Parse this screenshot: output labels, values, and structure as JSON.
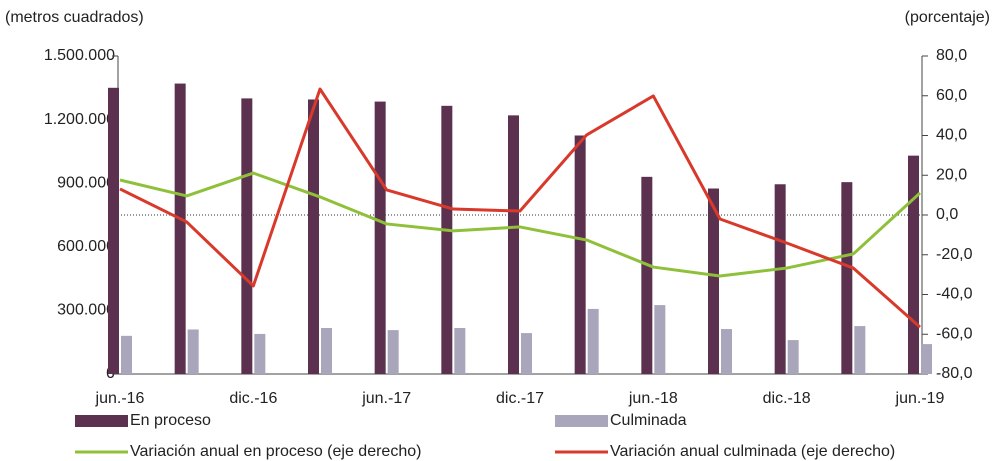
{
  "chart_data": {
    "type": "bar_line",
    "y_label": "(metros cuadrados)",
    "y2_label": "(porcentaje)",
    "categories": [
      "jun.-16",
      null,
      "dic.-16",
      null,
      "jun.-17",
      null,
      "dic.-17",
      null,
      "jun.-18",
      null,
      "dic.-18",
      null,
      "jun.-19"
    ],
    "ylim": [
      0,
      1500000
    ],
    "yticks": [
      0,
      {
        "value": 300000,
        "label": "300.000"
      },
      {
        "value": 600000,
        "label": "600.000"
      },
      {
        "value": 900000,
        "label": "900.000"
      },
      {
        "value": 1200000,
        "label": "1.200.000"
      },
      {
        "value": 1500000,
        "label": "1.500.000"
      }
    ],
    "y2lim": [
      -80,
      80
    ],
    "y2ticks": [
      {
        "value": -80,
        "label": "-80,0"
      },
      {
        "value": -60,
        "label": "-60,0"
      },
      {
        "value": -40,
        "label": "-40,0"
      },
      {
        "value": -20,
        "label": "-20,0"
      },
      {
        "value": 0,
        "label": "0,0"
      },
      {
        "value": 20,
        "label": "20,0"
      },
      {
        "value": 40,
        "label": "40,0"
      },
      {
        "value": 60,
        "label": "60,0"
      },
      {
        "value": 80,
        "label": "80,0"
      }
    ],
    "series": [
      {
        "name": "En proceso",
        "type": "bar",
        "color": "#5c3150",
        "values": [
          1350000,
          1370000,
          1300000,
          1295000,
          1285000,
          1265000,
          1220000,
          1125000,
          930000,
          875000,
          895000,
          905000,
          1030000
        ]
      },
      {
        "name": "Culminada",
        "type": "bar",
        "color": "#a9a5ba",
        "values": [
          180000,
          210000,
          189000,
          217000,
          207000,
          217000,
          193000,
          307000,
          325000,
          212000,
          160000,
          226000,
          141000
        ]
      },
      {
        "name": "Variación anual en proceso (eje derecho)",
        "type": "line",
        "axis": "y2",
        "color": "#8fc03a",
        "values": [
          17.6,
          9.6,
          21.1,
          9.1,
          -4.5,
          -8.0,
          -6.0,
          -12.6,
          -26.2,
          -30.7,
          -26.7,
          -19.6,
          11.1
        ]
      },
      {
        "name": "Variación anual culminada (eje derecho)",
        "type": "line",
        "axis": "y2",
        "color": "#d8392b",
        "values": [
          13.1,
          -3.5,
          -35.7,
          63.4,
          12.6,
          3.0,
          2.0,
          40.3,
          59.9,
          -2.0,
          -14.1,
          -26.7,
          -56.4
        ]
      }
    ]
  }
}
